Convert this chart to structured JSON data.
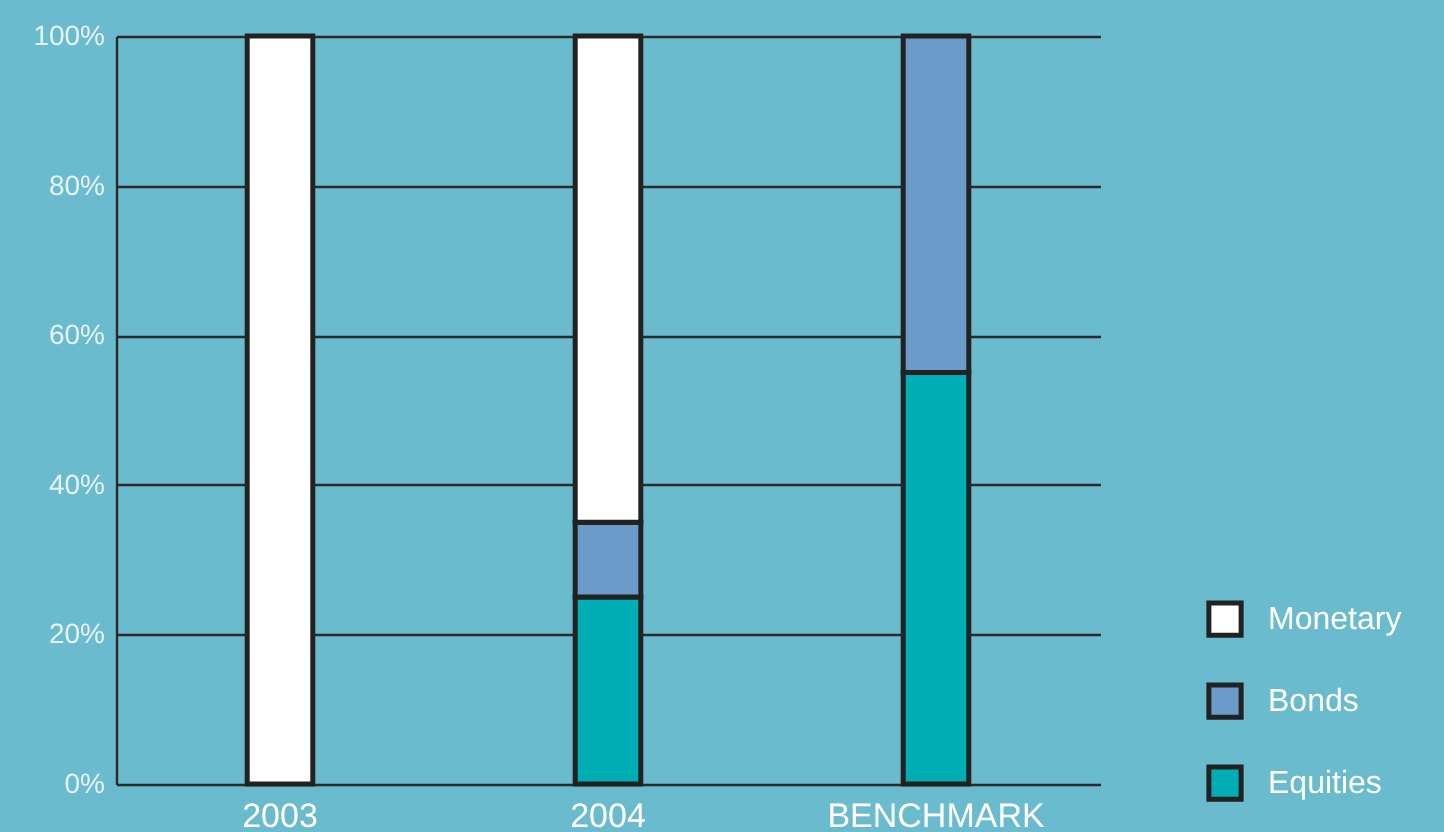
{
  "chart_data": {
    "type": "bar",
    "stacked": true,
    "categories": [
      "2003",
      "2004",
      "BENCHMARK"
    ],
    "series": [
      {
        "name": "Equities",
        "color": "#00adb5",
        "values": [
          0,
          25,
          55
        ]
      },
      {
        "name": "Bonds",
        "color": "#6a9bc9",
        "values": [
          0,
          10,
          45
        ]
      },
      {
        "name": "Monetary",
        "color": "#ffffff",
        "values": [
          100,
          65,
          0
        ]
      }
    ],
    "ylim": [
      0,
      100
    ],
    "yticks": [
      {
        "value": 0,
        "label": "0%"
      },
      {
        "value": 20,
        "label": "20%"
      },
      {
        "value": 40,
        "label": "40%"
      },
      {
        "value": 60,
        "label": "60%"
      },
      {
        "value": 80,
        "label": "80%"
      },
      {
        "value": 100,
        "label": "100%"
      }
    ],
    "grid": "y",
    "legend": "bottom right"
  }
}
